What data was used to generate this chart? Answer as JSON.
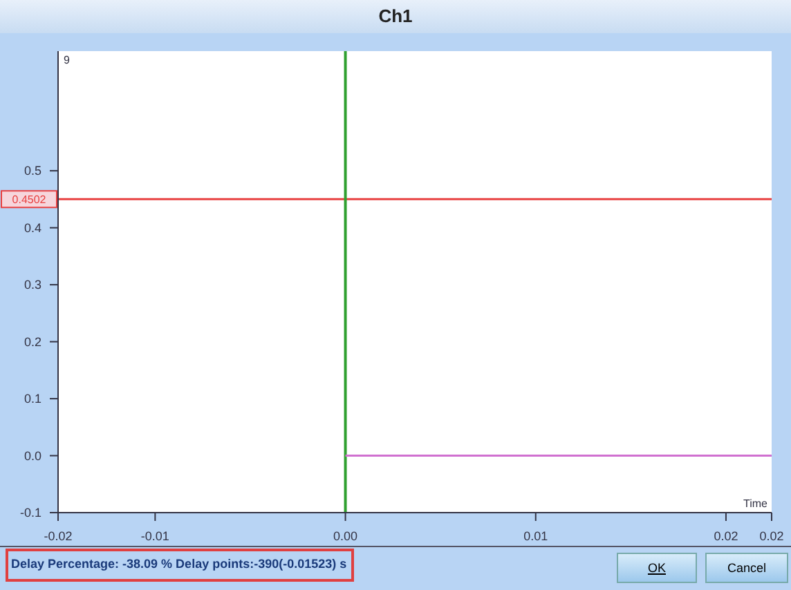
{
  "chart_data": {
    "type": "line",
    "title": "Ch1",
    "xlabel": "Time",
    "xlim": [
      -0.0151,
      0.0224
    ],
    "xticks": [
      {
        "value": -0.0151,
        "label": "-0.02"
      },
      {
        "value": -0.01,
        "label": "-0.01"
      },
      {
        "value": 0,
        "label": "0.00"
      },
      {
        "value": 0.01,
        "label": "0.01"
      },
      {
        "value": 0.02,
        "label": "0.02"
      },
      {
        "value": 0.0224,
        "label": "0.02"
      }
    ],
    "ylim": [
      -0.1,
      0.71
    ],
    "yticks": [
      {
        "value": -0.1,
        "label": "-0.1"
      },
      {
        "value": 0,
        "label": "0.0"
      },
      {
        "value": 0.1,
        "label": "0.1"
      },
      {
        "value": 0.2,
        "label": "0.2"
      },
      {
        "value": 0.3,
        "label": "0.3"
      },
      {
        "value": 0.4,
        "label": "0.4"
      },
      {
        "value": 0.5,
        "label": "0.5"
      }
    ],
    "series": [
      {
        "color": "#d070d0",
        "x": [
          0,
          0.0224
        ],
        "values": [
          0,
          0
        ]
      }
    ],
    "ref_lines": [
      {
        "axis": "y",
        "value": 0.4502,
        "label": "0.4502",
        "color": "#e84040"
      },
      {
        "axis": "x",
        "value": 0,
        "color": "#30a030"
      }
    ],
    "grid": false,
    "legend": false,
    "marker": "none",
    "line_style": "solid",
    "annotations": [
      "9",
      "Delay Percentage: -38.09 % Delay points:-390(-0.01523) s",
      "OK",
      "Cancel"
    ]
  }
}
